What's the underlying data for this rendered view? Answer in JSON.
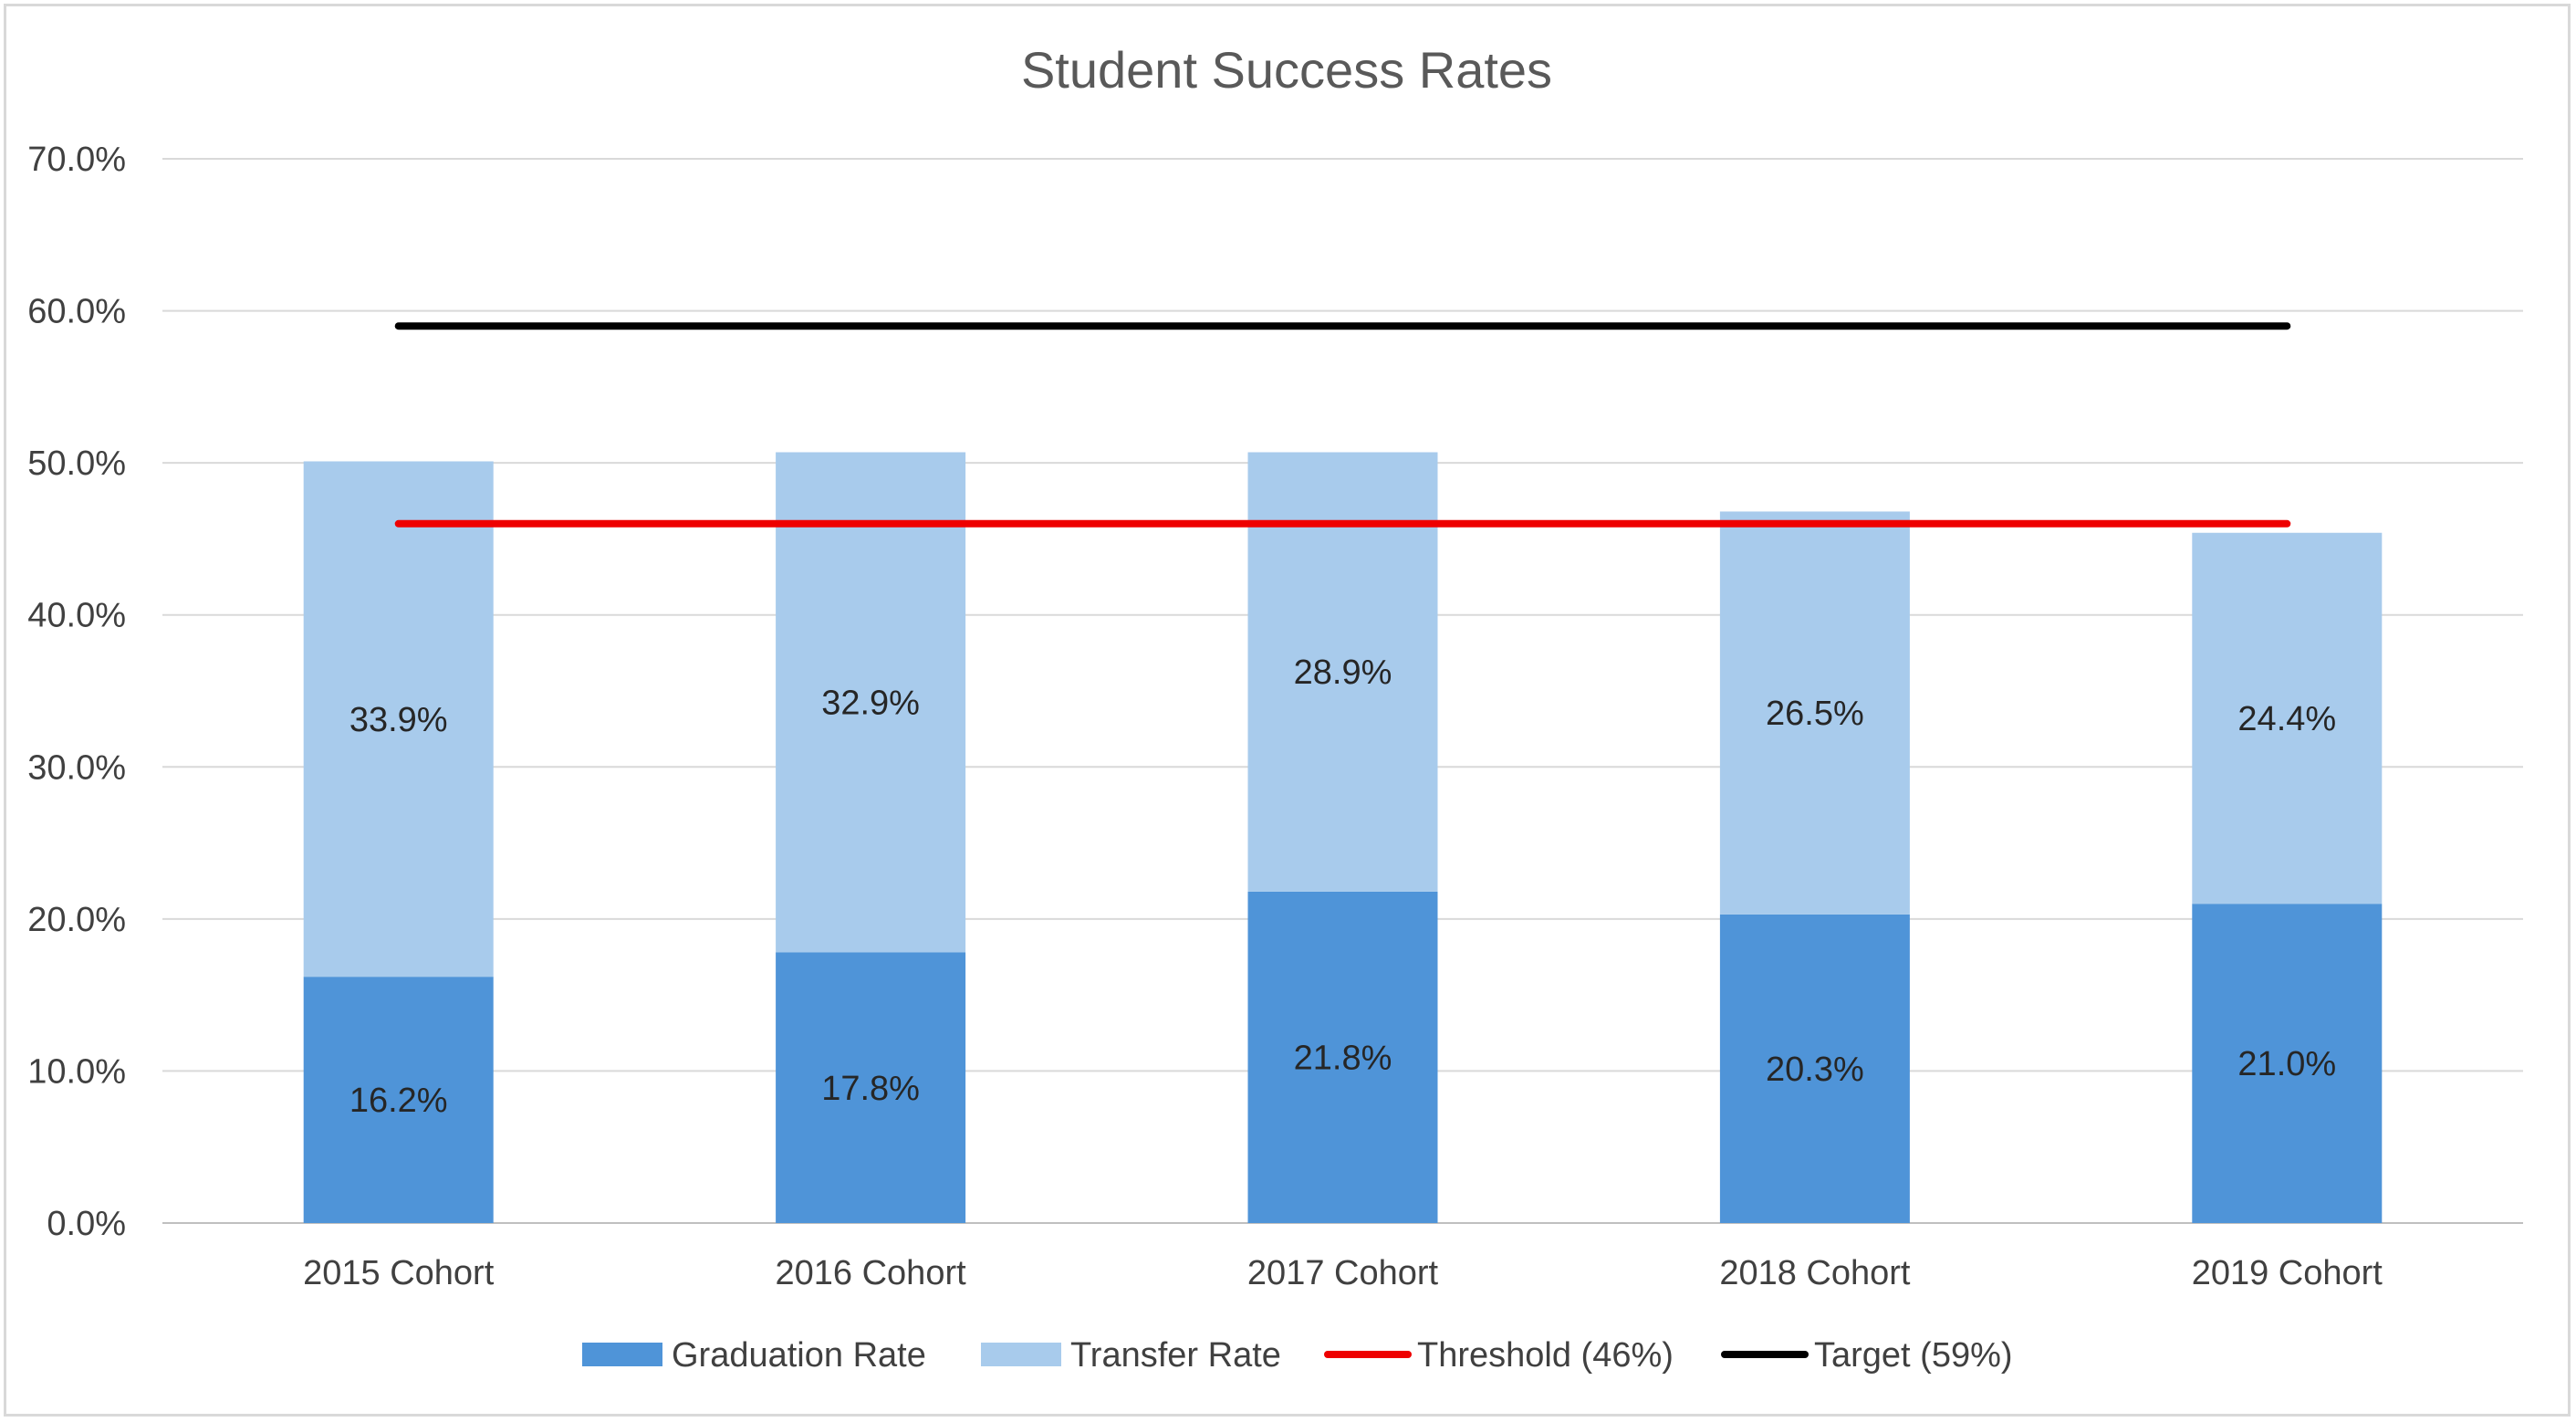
{
  "chart_data": {
    "type": "bar",
    "stacked": true,
    "title": "Student Success Rates",
    "categories": [
      "2015 Cohort",
      "2016 Cohort",
      "2017 Cohort",
      "2018 Cohort",
      "2019 Cohort"
    ],
    "series": [
      {
        "name": "Graduation Rate",
        "kind": "bar",
        "color": "#4f94d8",
        "values": [
          16.2,
          17.8,
          21.8,
          20.3,
          21.0
        ],
        "labels": [
          "16.2%",
          "17.8%",
          "21.8%",
          "20.3%",
          "21.0%"
        ]
      },
      {
        "name": "Transfer Rate",
        "kind": "bar",
        "color": "#a8cbec",
        "values": [
          33.9,
          32.9,
          28.9,
          26.5,
          24.4
        ],
        "labels": [
          "33.9%",
          "32.9%",
          "28.9%",
          "26.5%",
          "24.4%"
        ]
      },
      {
        "name": "Threshold (46%)",
        "kind": "line",
        "color": "#ee0000",
        "values": [
          46,
          46,
          46,
          46,
          46
        ]
      },
      {
        "name": "Target (59%)",
        "kind": "line",
        "color": "#000000",
        "values": [
          59,
          59,
          59,
          59,
          59
        ]
      }
    ],
    "ylim": [
      0,
      70
    ],
    "yticks": [
      "0.0%",
      "10.0%",
      "20.0%",
      "30.0%",
      "40.0%",
      "50.0%",
      "60.0%",
      "70.0%"
    ],
    "grid": true,
    "legend_position": "bottom"
  }
}
